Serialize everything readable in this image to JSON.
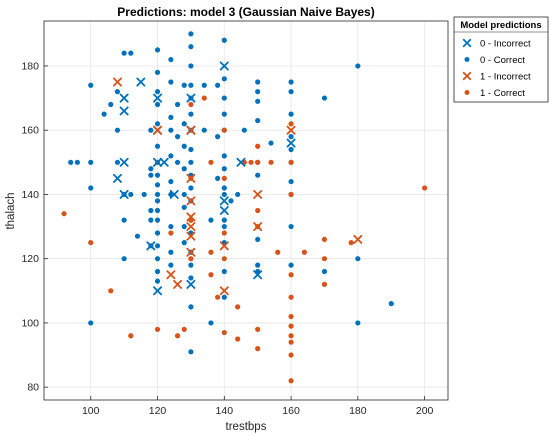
{
  "chart_data": {
    "type": "scatter",
    "title": "Predictions: model 3 (Gaussian Naive Bayes)",
    "xlabel": "trestbps",
    "ylabel": "thalach",
    "xlim": [
      86,
      207
    ],
    "ylim": [
      76,
      194
    ],
    "xticks": [
      100,
      120,
      140,
      160,
      180,
      200
    ],
    "yticks": [
      80,
      100,
      120,
      140,
      160,
      180
    ],
    "grid": true,
    "legend": {
      "title": "Model predictions",
      "placement": "outside-top-right"
    },
    "series": [
      {
        "name": "0 - Incorrect",
        "marker": "x",
        "color": "#0072BD",
        "points": [
          [
            108,
            145
          ],
          [
            110,
            170
          ],
          [
            110,
            166
          ],
          [
            110,
            150
          ],
          [
            110,
            140
          ],
          [
            115,
            175
          ],
          [
            118,
            124
          ],
          [
            120,
            170
          ],
          [
            120,
            160
          ],
          [
            120,
            150
          ],
          [
            120,
            110
          ],
          [
            122,
            150
          ],
          [
            125,
            140
          ],
          [
            130,
            170
          ],
          [
            130,
            160
          ],
          [
            130,
            112
          ],
          [
            140,
            180
          ],
          [
            140,
            138
          ],
          [
            140,
            135
          ],
          [
            145,
            150
          ],
          [
            150,
            115
          ],
          [
            160,
            156
          ]
        ]
      },
      {
        "name": "0 - Correct",
        "color": "#0072BD",
        "marker": "o",
        "points": [
          [
            94,
            150
          ],
          [
            96,
            150
          ],
          [
            100,
            174
          ],
          [
            100,
            150
          ],
          [
            100,
            142
          ],
          [
            100,
            100
          ],
          [
            104,
            165
          ],
          [
            106,
            168
          ],
          [
            108,
            172
          ],
          [
            108,
            160
          ],
          [
            108,
            150
          ],
          [
            110,
            184
          ],
          [
            110,
            132
          ],
          [
            110,
            120
          ],
          [
            110,
            140
          ],
          [
            112,
            184
          ],
          [
            112,
            140
          ],
          [
            114,
            127
          ],
          [
            116,
            140
          ],
          [
            118,
            160
          ],
          [
            118,
            148
          ],
          [
            118,
            135
          ],
          [
            118,
            132
          ],
          [
            118,
            124
          ],
          [
            118,
            146
          ],
          [
            120,
            185
          ],
          [
            120,
            178
          ],
          [
            120,
            172
          ],
          [
            120,
            168
          ],
          [
            120,
            162
          ],
          [
            120,
            155
          ],
          [
            120,
            150
          ],
          [
            120,
            146
          ],
          [
            120,
            143
          ],
          [
            120,
            140
          ],
          [
            120,
            138
          ],
          [
            120,
            135
          ],
          [
            120,
            132
          ],
          [
            120,
            128
          ],
          [
            120,
            124
          ],
          [
            120,
            120
          ],
          [
            120,
            116
          ],
          [
            120,
            113
          ],
          [
            124,
            182
          ],
          [
            124,
            175
          ],
          [
            124,
            164
          ],
          [
            124,
            160
          ],
          [
            124,
            152
          ],
          [
            124,
            144
          ],
          [
            124,
            140
          ],
          [
            124,
            130
          ],
          [
            124,
            122
          ],
          [
            124,
            118
          ],
          [
            126,
            168
          ],
          [
            126,
            158
          ],
          [
            126,
            150
          ],
          [
            128,
            174
          ],
          [
            128,
            162
          ],
          [
            128,
            155
          ],
          [
            128,
            148
          ],
          [
            128,
            140
          ],
          [
            128,
            136
          ],
          [
            128,
            130
          ],
          [
            128,
            125
          ],
          [
            130,
            190
          ],
          [
            130,
            186
          ],
          [
            130,
            180
          ],
          [
            130,
            174
          ],
          [
            130,
            170
          ],
          [
            130,
            165
          ],
          [
            130,
            160
          ],
          [
            130,
            154
          ],
          [
            130,
            150
          ],
          [
            130,
            146
          ],
          [
            130,
            142
          ],
          [
            130,
            138
          ],
          [
            130,
            132
          ],
          [
            130,
            128
          ],
          [
            130,
            122
          ],
          [
            130,
            118
          ],
          [
            130,
            114
          ],
          [
            130,
            105
          ],
          [
            130,
            91
          ],
          [
            134,
            174
          ],
          [
            134,
            160
          ],
          [
            136,
            132
          ],
          [
            136,
            100
          ],
          [
            138,
            174
          ],
          [
            138,
            158
          ],
          [
            138,
            145
          ],
          [
            140,
            188
          ],
          [
            140,
            176
          ],
          [
            140,
            170
          ],
          [
            140,
            165
          ],
          [
            140,
            160
          ],
          [
            140,
            152
          ],
          [
            140,
            148
          ],
          [
            140,
            142
          ],
          [
            140,
            140
          ],
          [
            140,
            132
          ],
          [
            140,
            130
          ],
          [
            140,
            125
          ],
          [
            140,
            116
          ],
          [
            140,
            108
          ],
          [
            142,
            138
          ],
          [
            144,
            140
          ],
          [
            146,
            160
          ],
          [
            150,
            175
          ],
          [
            150,
            172
          ],
          [
            150,
            169
          ],
          [
            150,
            163
          ],
          [
            150,
            150
          ],
          [
            150,
            146
          ],
          [
            150,
            126
          ],
          [
            150,
            118
          ],
          [
            150,
            116
          ],
          [
            154,
            156
          ],
          [
            160,
            175
          ],
          [
            160,
            172
          ],
          [
            160,
            165
          ],
          [
            160,
            158
          ],
          [
            160,
            154
          ],
          [
            160,
            150
          ],
          [
            160,
            144
          ],
          [
            160,
            140
          ],
          [
            160,
            130
          ],
          [
            160,
            118
          ],
          [
            170,
            170
          ],
          [
            170,
            116
          ],
          [
            180,
            180
          ],
          [
            180,
            120
          ],
          [
            180,
            100
          ],
          [
            190,
            106
          ]
        ]
      },
      {
        "name": "1 - Incorrect",
        "marker": "x",
        "color": "#D95319",
        "points": [
          [
            108,
            175
          ],
          [
            120,
            160
          ],
          [
            124,
            115
          ],
          [
            126,
            112
          ],
          [
            130,
            145
          ],
          [
            130,
            138
          ],
          [
            130,
            133
          ],
          [
            130,
            130
          ],
          [
            130,
            127
          ],
          [
            130,
            122
          ],
          [
            130,
            160
          ],
          [
            140,
            124
          ],
          [
            140,
            110
          ],
          [
            150,
            140
          ],
          [
            150,
            130
          ],
          [
            160,
            160
          ],
          [
            180,
            126
          ]
        ]
      },
      {
        "name": "1 - Correct",
        "marker": "o",
        "color": "#D95319",
        "points": [
          [
            92,
            134
          ],
          [
            100,
            125
          ],
          [
            106,
            110
          ],
          [
            112,
            96
          ],
          [
            120,
            98
          ],
          [
            120,
            150
          ],
          [
            124,
            128
          ],
          [
            126,
            96
          ],
          [
            128,
            98
          ],
          [
            130,
            168
          ],
          [
            130,
            145
          ],
          [
            130,
            132
          ],
          [
            130,
            120
          ],
          [
            134,
            170
          ],
          [
            136,
            150
          ],
          [
            136,
            122
          ],
          [
            136,
            115
          ],
          [
            138,
            108
          ],
          [
            140,
            160
          ],
          [
            140,
            145
          ],
          [
            140,
            128
          ],
          [
            140,
            120
          ],
          [
            140,
            97
          ],
          [
            144,
            105
          ],
          [
            144,
            95
          ],
          [
            146,
            150
          ],
          [
            148,
            150
          ],
          [
            150,
            155
          ],
          [
            150,
            150
          ],
          [
            150,
            135
          ],
          [
            150,
            130
          ],
          [
            150,
            98
          ],
          [
            150,
            92
          ],
          [
            154,
            150
          ],
          [
            156,
            122
          ],
          [
            160,
            162
          ],
          [
            160,
            150
          ],
          [
            160,
            140
          ],
          [
            160,
            115
          ],
          [
            160,
            108
          ],
          [
            160,
            102
          ],
          [
            160,
            99
          ],
          [
            160,
            96
          ],
          [
            160,
            94
          ],
          [
            160,
            90
          ],
          [
            160,
            82
          ],
          [
            164,
            122
          ],
          [
            170,
            126
          ],
          [
            170,
            120
          ],
          [
            170,
            112
          ],
          [
            178,
            125
          ],
          [
            200,
            142
          ]
        ]
      }
    ]
  }
}
